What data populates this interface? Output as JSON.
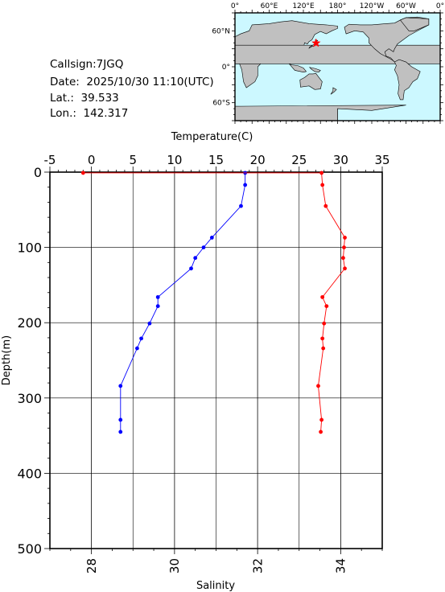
{
  "station": {
    "callsign": "Callsign:7JGQ",
    "date": "Date:  2025/10/30 11:10(UTC)",
    "lat": "Lat.:  39.533",
    "lon": "Lon.:  142.317"
  },
  "map": {
    "lon_labels": [
      "0°",
      "60°E",
      "120°E",
      "180°",
      "120°W",
      "60°W",
      "0°"
    ],
    "lat_labels": [
      "60°N",
      "0°",
      "60°S"
    ],
    "ocean_color": "#ccf8ff",
    "land_color": "#c0c0c0",
    "marker_color": "#ff0000",
    "marker_icon": "star-icon",
    "marker": {
      "lat": 39.533,
      "lon": 142.317
    }
  },
  "chart_data": {
    "type": "line",
    "xlabel_top": "Temperature(C)",
    "xlabel_bottom": "Salinity",
    "ylabel": "Depth(m)",
    "temperature_axis": {
      "range": [
        -5,
        35
      ],
      "ticks": [
        "-5",
        "0",
        "5",
        "10",
        "15",
        "20",
        "25",
        "30",
        "35"
      ]
    },
    "salinity_axis": {
      "range": [
        27,
        35
      ],
      "ticks": [
        "28",
        "30",
        "32",
        "34"
      ]
    },
    "depth_axis": {
      "range": [
        0,
        500
      ],
      "reversed": true,
      "ticks": [
        "0",
        "100",
        "200",
        "300",
        "400",
        "500"
      ]
    },
    "grid": true,
    "series": [
      {
        "color": "#0000ff",
        "axis": "salinity",
        "points": [
          {
            "depth": 1,
            "value": 31.7
          },
          {
            "depth": 17,
            "value": 31.7
          },
          {
            "depth": 45,
            "value": 31.6
          },
          {
            "depth": 87,
            "value": 30.9
          },
          {
            "depth": 100,
            "value": 30.7
          },
          {
            "depth": 114,
            "value": 30.5
          },
          {
            "depth": 128,
            "value": 30.4
          },
          {
            "depth": 166,
            "value": 29.6
          },
          {
            "depth": 178,
            "value": 29.6
          },
          {
            "depth": 201,
            "value": 29.4
          },
          {
            "depth": 221,
            "value": 29.2
          },
          {
            "depth": 234,
            "value": 29.1
          },
          {
            "depth": 284,
            "value": 28.7
          },
          {
            "depth": 329,
            "value": 28.7
          },
          {
            "depth": 345,
            "value": 28.7
          }
        ]
      },
      {
        "color": "#ff0000",
        "axis": "temperature",
        "points": [
          {
            "depth": 1,
            "value": -1.0
          },
          {
            "depth": 1,
            "value": 27.7
          },
          {
            "depth": 17,
            "value": 27.8
          },
          {
            "depth": 45,
            "value": 28.2
          },
          {
            "depth": 87,
            "value": 30.5
          },
          {
            "depth": 100,
            "value": 30.4
          },
          {
            "depth": 114,
            "value": 30.3
          },
          {
            "depth": 128,
            "value": 30.5
          },
          {
            "depth": 166,
            "value": 27.8
          },
          {
            "depth": 178,
            "value": 28.3
          },
          {
            "depth": 201,
            "value": 28.0
          },
          {
            "depth": 221,
            "value": 27.8
          },
          {
            "depth": 234,
            "value": 27.9
          },
          {
            "depth": 284,
            "value": 27.3
          },
          {
            "depth": 329,
            "value": 27.7
          },
          {
            "depth": 345,
            "value": 27.6
          }
        ]
      }
    ]
  }
}
